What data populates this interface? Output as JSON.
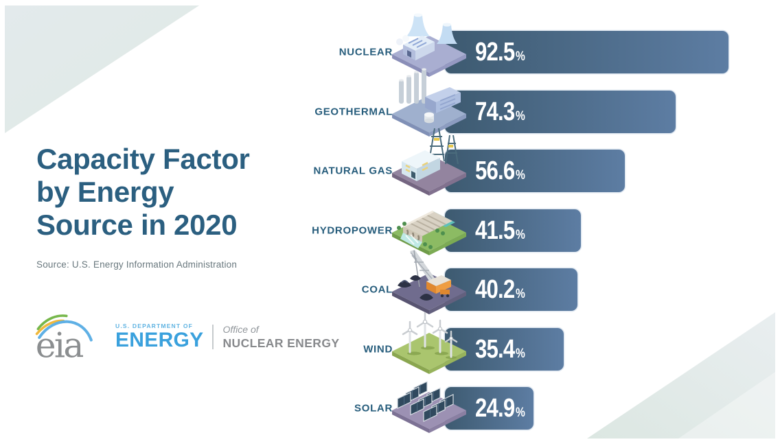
{
  "header": {
    "title": "Capacity Factor\nby Energy\nSource in 2020",
    "title_color": "#2b5f80",
    "source": "Source: U.S. Energy Information Administration"
  },
  "branding": {
    "eia_logo_text": "eia",
    "doe_small": "U.S. DEPARTMENT OF",
    "doe_large": "ENERGY",
    "office_top": "Office of",
    "office_bottom": "NUCLEAR ENERGY",
    "doe_blue": "#3aa1dd",
    "office_gray": "#87898c"
  },
  "chart_data": {
    "type": "bar",
    "orientation": "horizontal",
    "title": "Capacity Factor by Energy Source in 2020",
    "source": "Source: U.S. Energy Information Administration",
    "unit": "%",
    "categories": [
      "NUCLEAR",
      "GEOTHERMAL",
      "NATURAL GAS",
      "HYDROPOWER",
      "COAL",
      "WIND",
      "SOLAR"
    ],
    "values": [
      92.5,
      74.3,
      56.6,
      41.5,
      40.2,
      35.4,
      24.9
    ],
    "rows": [
      {
        "label": "NUCLEAR",
        "value": 92.5,
        "display": "92.5",
        "icon": "nuclear-plant-icon"
      },
      {
        "label": "GEOTHERMAL",
        "value": 74.3,
        "display": "74.3",
        "icon": "geothermal-plant-icon"
      },
      {
        "label": "NATURAL GAS",
        "value": 56.6,
        "display": "56.6",
        "icon": "gas-plant-icon"
      },
      {
        "label": "HYDROPOWER",
        "value": 41.5,
        "display": "41.5",
        "icon": "hydropower-dam-icon"
      },
      {
        "label": "COAL",
        "value": 40.2,
        "display": "40.2",
        "icon": "coal-mining-icon"
      },
      {
        "label": "WIND",
        "value": 35.4,
        "display": "35.4",
        "icon": "wind-turbines-icon"
      },
      {
        "label": "SOLAR",
        "value": 24.9,
        "display": "24.9",
        "icon": "solar-panels-icon"
      }
    ],
    "bar_gradient": {
      "start": "#3d5a70",
      "end": "#5d7da3"
    },
    "value_text_color": "#ffffff",
    "label_color": "#275d7c",
    "legend": "none",
    "grid": "off",
    "xlim": [
      0,
      100
    ]
  },
  "decorations": {
    "top_left_tint_start": "#dfe9e5",
    "top_left_tint_end": "#e6ecee",
    "bottom_right_tint_start": "#dce7e2",
    "bottom_right_tint_end": "#e9eef0"
  }
}
